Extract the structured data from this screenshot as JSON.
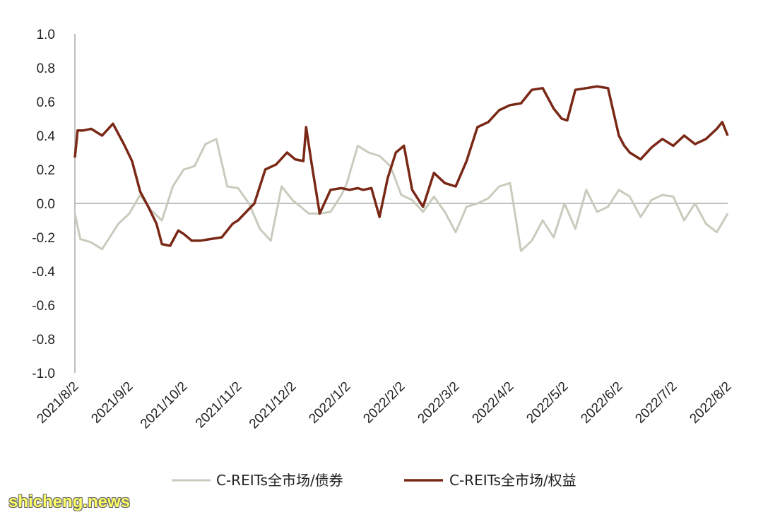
{
  "watermark": "shicheng.news",
  "chart_data": {
    "type": "line",
    "title": "",
    "xlabel": "",
    "ylabel": "",
    "ylim": [
      -1.0,
      1.0
    ],
    "yticks": [
      "1.0",
      "0.8",
      "0.6",
      "0.4",
      "0.2",
      "0.0",
      "-0.2",
      "-0.4",
      "-0.6",
      "-0.8",
      "-1.0"
    ],
    "xticks": [
      "2021/8/2",
      "2021/9/2",
      "2021/10/2",
      "2021/11/2",
      "2021/12/2",
      "2022/1/2",
      "2022/2/2",
      "2022/3/2",
      "2022/4/2",
      "2022/5/2",
      "2022/6/2",
      "2022/7/2",
      "2022/8/2"
    ],
    "legend_position": "bottom",
    "grid": false,
    "series": [
      {
        "name": "C-REITs全市场/债券",
        "color": "#c9cbbd",
        "t": [
          0,
          0.1,
          0.3,
          0.5,
          0.8,
          1.0,
          1.2,
          1.4,
          1.6,
          1.8,
          2.0,
          2.2,
          2.4,
          2.6,
          2.8,
          3.0,
          3.2,
          3.4,
          3.6,
          3.8,
          4.0,
          4.15,
          4.3,
          4.5,
          4.7,
          4.9,
          5.0,
          5.2,
          5.4,
          5.6,
          5.8,
          6.0,
          6.2,
          6.4,
          6.6,
          6.8,
          7.0,
          7.2,
          7.4,
          7.6,
          7.8,
          8.0,
          8.2,
          8.4,
          8.6,
          8.8,
          9.0,
          9.2,
          9.4,
          9.6,
          9.8,
          10.0,
          10.2,
          10.4,
          10.6,
          10.8,
          11.0,
          11.2,
          11.4,
          11.6,
          11.8,
          12.0
        ],
        "values": [
          -0.06,
          -0.21,
          -0.23,
          -0.27,
          -0.12,
          -0.06,
          0.05,
          -0.04,
          -0.1,
          0.1,
          0.2,
          0.22,
          0.35,
          0.38,
          0.1,
          0.09,
          0.0,
          -0.15,
          -0.22,
          0.1,
          0.02,
          -0.02,
          -0.06,
          -0.06,
          -0.05,
          0.05,
          0.12,
          0.34,
          0.3,
          0.28,
          0.22,
          0.05,
          0.02,
          -0.05,
          0.04,
          -0.05,
          -0.17,
          -0.02,
          0.0,
          0.03,
          0.1,
          0.12,
          -0.28,
          -0.22,
          -0.1,
          -0.2,
          0.0,
          -0.15,
          0.08,
          -0.05,
          -0.02,
          0.08,
          0.04,
          -0.08,
          0.02,
          0.05,
          0.04,
          -0.1,
          0.0,
          -0.12,
          -0.17,
          -0.06
        ]
      },
      {
        "name": "C-REITs全市场/权益",
        "color": "#7a2816",
        "t": [
          0,
          0.05,
          0.15,
          0.3,
          0.5,
          0.7,
          0.9,
          1.05,
          1.2,
          1.35,
          1.5,
          1.6,
          1.75,
          1.9,
          2.0,
          2.15,
          2.3,
          2.5,
          2.7,
          2.9,
          3.0,
          3.15,
          3.3,
          3.5,
          3.7,
          3.9,
          4.05,
          4.2,
          4.25,
          4.35,
          4.5,
          4.7,
          4.9,
          5.05,
          5.2,
          5.3,
          5.45,
          5.6,
          5.75,
          5.9,
          6.05,
          6.2,
          6.4,
          6.6,
          6.8,
          7.0,
          7.2,
          7.4,
          7.6,
          7.8,
          8.0,
          8.2,
          8.4,
          8.6,
          8.8,
          8.95,
          9.05,
          9.2,
          9.4,
          9.6,
          9.8,
          10.0,
          10.1,
          10.2,
          10.4,
          10.6,
          10.8,
          11.0,
          11.2,
          11.4,
          11.6,
          11.8,
          11.9,
          12.0
        ],
        "values": [
          0.27,
          0.43,
          0.43,
          0.44,
          0.4,
          0.47,
          0.35,
          0.25,
          0.07,
          -0.02,
          -0.12,
          -0.24,
          -0.25,
          -0.16,
          -0.18,
          -0.22,
          -0.22,
          -0.21,
          -0.2,
          -0.12,
          -0.1,
          -0.05,
          0.0,
          0.2,
          0.23,
          0.3,
          0.26,
          0.25,
          0.45,
          0.24,
          -0.06,
          0.08,
          0.09,
          0.08,
          0.09,
          0.08,
          0.09,
          -0.08,
          0.15,
          0.3,
          0.34,
          0.08,
          -0.02,
          0.18,
          0.12,
          0.1,
          0.25,
          0.45,
          0.48,
          0.55,
          0.58,
          0.59,
          0.67,
          0.68,
          0.56,
          0.5,
          0.49,
          0.67,
          0.68,
          0.69,
          0.68,
          0.4,
          0.34,
          0.3,
          0.26,
          0.33,
          0.38,
          0.34,
          0.4,
          0.35,
          0.38,
          0.44,
          0.48,
          0.4
        ]
      }
    ]
  }
}
